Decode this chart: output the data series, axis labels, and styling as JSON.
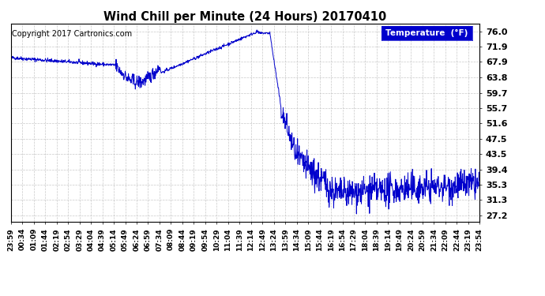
{
  "title": "Wind Chill per Minute (24 Hours) 20170410",
  "copyright": "Copyright 2017 Cartronics.com",
  "legend_label": "Temperature  (°F)",
  "line_color": "#0000CC",
  "background_color": "#ffffff",
  "plot_bg_color": "#ffffff",
  "grid_color": "#bbbbbb",
  "yticks": [
    27.2,
    31.3,
    35.3,
    39.4,
    43.5,
    47.5,
    51.6,
    55.7,
    59.7,
    63.8,
    67.9,
    71.9,
    76.0
  ],
  "ylim": [
    25.5,
    78.0
  ],
  "xtick_labels": [
    "23:59",
    "00:34",
    "01:09",
    "01:44",
    "02:19",
    "02:54",
    "03:29",
    "04:04",
    "04:39",
    "05:14",
    "05:49",
    "06:24",
    "06:59",
    "07:34",
    "08:09",
    "08:44",
    "09:19",
    "09:54",
    "10:29",
    "11:04",
    "11:39",
    "12:14",
    "12:49",
    "13:24",
    "13:59",
    "14:34",
    "15:09",
    "15:44",
    "16:19",
    "16:54",
    "17:29",
    "18:04",
    "18:39",
    "19:14",
    "19:49",
    "20:24",
    "20:59",
    "21:34",
    "22:09",
    "22:44",
    "23:19",
    "23:54"
  ],
  "num_points": 1440
}
